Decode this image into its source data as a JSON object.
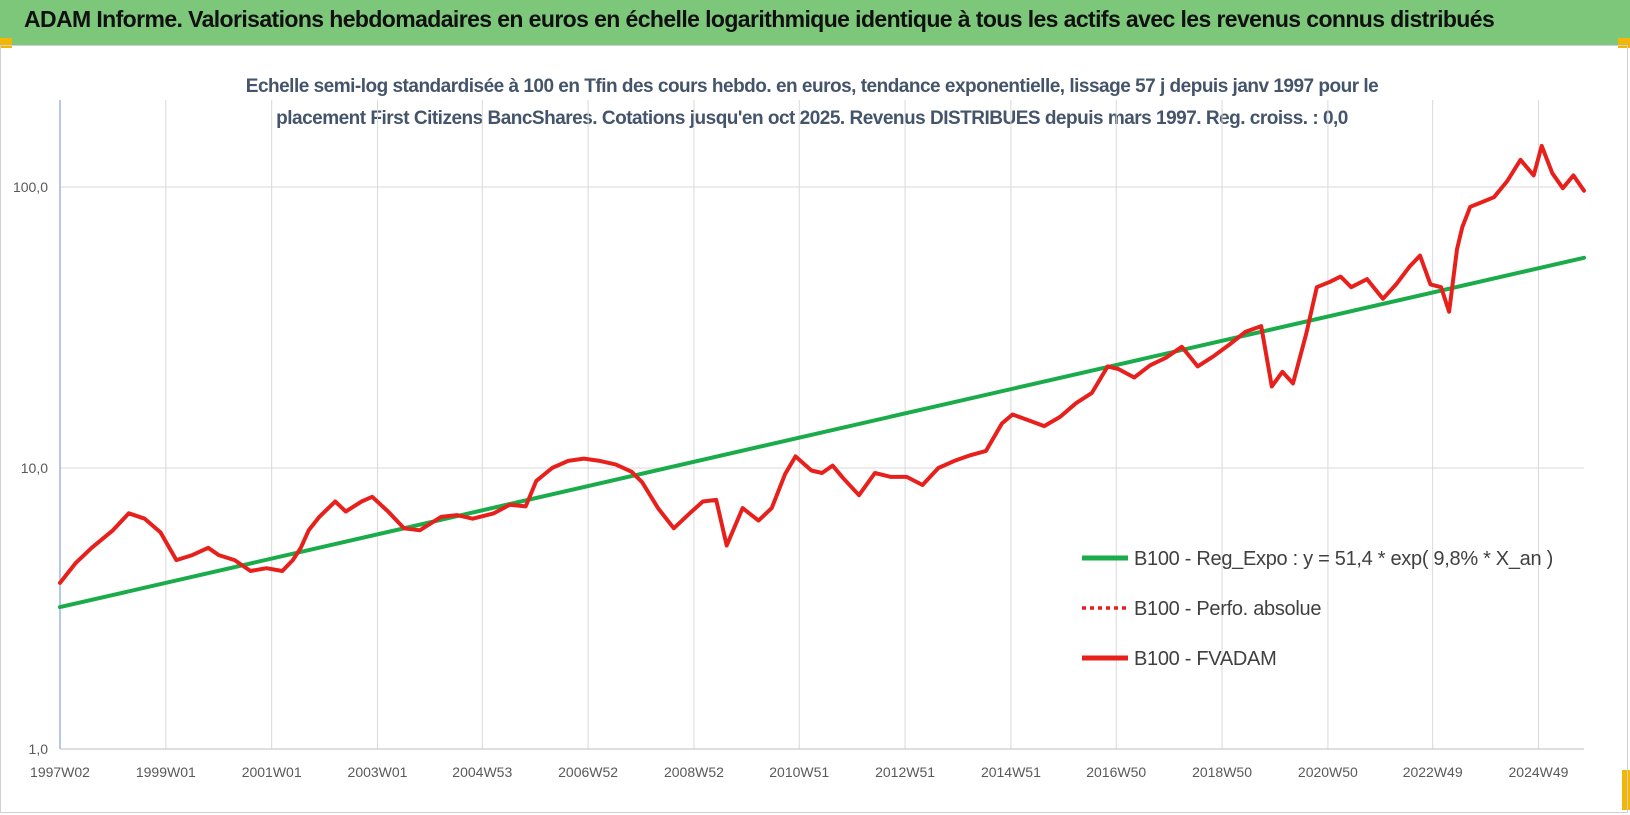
{
  "header": {
    "title": "ADAM Informe. Valorisations hebdomadaires en euros en échelle logarithmique identique à tous les actifs avec les revenus connus distribués",
    "background": "#7dc77a"
  },
  "chart_data": {
    "type": "line",
    "title_lines": [
      "Echelle semi-log standardisée à 100 en Tfin des cours hebdo. en euros, tendance exponentielle, lissage 57 j depuis janv 1997 pour le",
      "placement First Citizens BancShares. Cotations jusqu'en oct 2025.  Revenus DISTRIBUES depuis mars 1997.  Reg. croiss. : 0,0"
    ],
    "y_scale": "log",
    "ylim": [
      1,
      200
    ],
    "xlim": [
      1997.0,
      2025.8
    ],
    "y_ticks": [
      {
        "value": 1,
        "label": "1,0"
      },
      {
        "value": 10,
        "label": "10,0"
      },
      {
        "value": 100,
        "label": "100,0"
      }
    ],
    "x_ticks": [
      {
        "value": 1997.0,
        "label": "1997W02"
      },
      {
        "value": 1999.0,
        "label": "1999W01"
      },
      {
        "value": 2001.0,
        "label": "2001W01"
      },
      {
        "value": 2003.0,
        "label": "2003W01"
      },
      {
        "value": 2004.98,
        "label": "2004W53"
      },
      {
        "value": 2006.98,
        "label": "2006W52"
      },
      {
        "value": 2008.98,
        "label": "2008W52"
      },
      {
        "value": 2010.97,
        "label": "2010W51"
      },
      {
        "value": 2012.97,
        "label": "2012W51"
      },
      {
        "value": 2014.97,
        "label": "2014W51"
      },
      {
        "value": 2016.96,
        "label": "2016W50"
      },
      {
        "value": 2018.96,
        "label": "2018W50"
      },
      {
        "value": 2020.96,
        "label": "2020W50"
      },
      {
        "value": 2022.94,
        "label": "2022W49"
      },
      {
        "value": 2024.94,
        "label": "2024W49"
      }
    ],
    "grid": "vertical at x ticks, horizontal at y ticks",
    "legend_position": "bottom-right",
    "series": [
      {
        "name": "B100 - Reg_Expo : y = 51,4 * exp( 9,8% *  X_an )",
        "color": "#1aab4b",
        "style": "solid",
        "x": [
          1997.0,
          2025.8
        ],
        "y": [
          3.2,
          56.0
        ]
      },
      {
        "name": "B100 - Perfo. absolue",
        "color": "#e8201c",
        "style": "dotted",
        "x": [],
        "y": []
      },
      {
        "name": "B100 - FVADAM",
        "color": "#e8201c",
        "style": "solid",
        "x": [
          1997.0,
          1997.3,
          1997.6,
          1998.0,
          1998.3,
          1998.6,
          1998.9,
          1999.2,
          1999.5,
          1999.8,
          2000.0,
          2000.3,
          2000.6,
          2000.9,
          2001.2,
          2001.4,
          2001.55,
          2001.7,
          2001.9,
          2002.2,
          2002.4,
          2002.7,
          2002.9,
          2003.2,
          2003.5,
          2003.8,
          2004.2,
          2004.5,
          2004.8,
          2005.2,
          2005.5,
          2005.8,
          2006.0,
          2006.3,
          2006.6,
          2006.9,
          2007.2,
          2007.5,
          2007.8,
          2008.0,
          2008.3,
          2008.6,
          2008.9,
          2009.15,
          2009.4,
          2009.6,
          2009.9,
          2010.2,
          2010.45,
          2010.7,
          2010.9,
          2011.2,
          2011.4,
          2011.6,
          2011.8,
          2012.1,
          2012.4,
          2012.7,
          2013.0,
          2013.3,
          2013.6,
          2013.9,
          2014.2,
          2014.5,
          2014.8,
          2015.0,
          2015.3,
          2015.6,
          2015.9,
          2016.2,
          2016.5,
          2016.8,
          2017.0,
          2017.3,
          2017.6,
          2017.9,
          2018.2,
          2018.5,
          2018.8,
          2019.1,
          2019.4,
          2019.7,
          2019.9,
          2020.1,
          2020.3,
          2020.55,
          2020.75,
          2021.0,
          2021.2,
          2021.4,
          2021.7,
          2022.0,
          2022.25,
          2022.5,
          2022.7,
          2022.9,
          2023.1,
          2023.25,
          2023.4,
          2023.5,
          2023.65,
          2023.85,
          2024.1,
          2024.35,
          2024.6,
          2024.85,
          2025.0,
          2025.2,
          2025.4,
          2025.6,
          2025.8
        ],
        "y": [
          3.9,
          4.6,
          5.2,
          6.0,
          6.9,
          6.6,
          5.9,
          4.7,
          4.9,
          5.2,
          4.9,
          4.7,
          4.3,
          4.4,
          4.3,
          4.7,
          5.2,
          6.0,
          6.7,
          7.6,
          7.0,
          7.6,
          7.9,
          7.0,
          6.1,
          6.0,
          6.7,
          6.8,
          6.6,
          6.9,
          7.4,
          7.3,
          9.0,
          10.0,
          10.6,
          10.8,
          10.6,
          10.3,
          9.7,
          8.9,
          7.2,
          6.1,
          6.9,
          7.6,
          7.7,
          5.3,
          7.2,
          6.5,
          7.2,
          9.5,
          11.0,
          9.8,
          9.6,
          10.2,
          9.2,
          8.0,
          9.6,
          9.3,
          9.3,
          8.7,
          10.0,
          10.6,
          11.1,
          11.5,
          14.4,
          15.5,
          14.8,
          14.1,
          15.2,
          17.0,
          18.5,
          23.0,
          22.5,
          21.0,
          23.2,
          24.7,
          27.0,
          23.0,
          25.0,
          27.5,
          30.5,
          32.0,
          19.5,
          22.0,
          20.0,
          30.0,
          44.0,
          46.0,
          48.0,
          44.0,
          47.0,
          40.0,
          45.0,
          52.0,
          57.0,
          45.0,
          44.0,
          36.0,
          60.0,
          72.0,
          85.0,
          88.0,
          92.0,
          105.0,
          125.0,
          110.0,
          140.0,
          112.0,
          99.0,
          110.0,
          97.0
        ]
      }
    ]
  }
}
